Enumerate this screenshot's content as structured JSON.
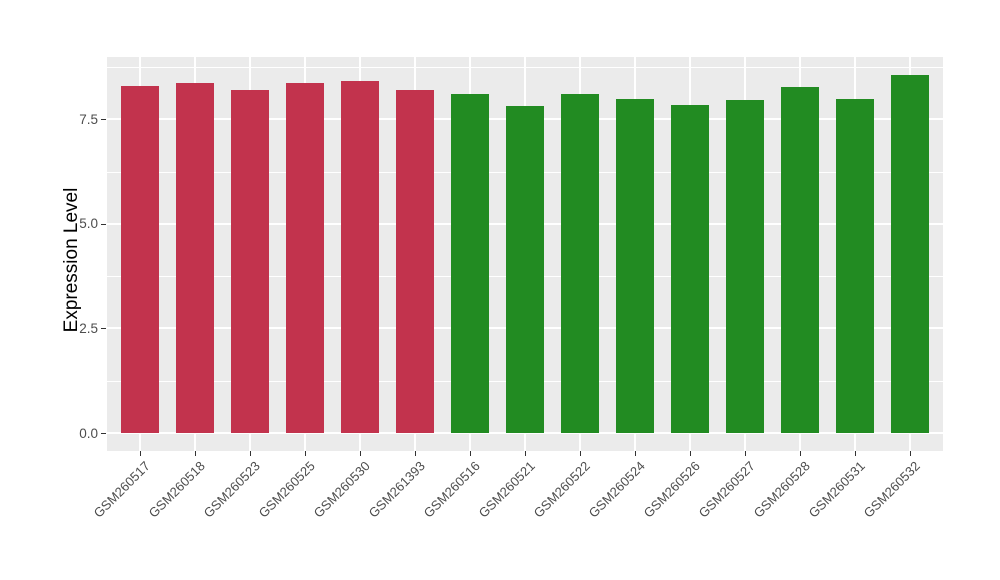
{
  "chart_data": {
    "type": "bar",
    "title": "",
    "xlabel": "",
    "ylabel": "Expression Level",
    "categories": [
      "GSM260517",
      "GSM260518",
      "GSM260523",
      "GSM260525",
      "GSM260530",
      "GSM261393",
      "GSM260516",
      "GSM260521",
      "GSM260522",
      "GSM260524",
      "GSM260526",
      "GSM260527",
      "GSM260528",
      "GSM260531",
      "GSM260532"
    ],
    "values": [
      8.3,
      8.36,
      8.21,
      8.36,
      8.41,
      8.21,
      8.1,
      7.81,
      8.11,
      7.99,
      7.85,
      7.96,
      8.28,
      7.99,
      8.56
    ],
    "bar_groups": [
      0,
      0,
      0,
      0,
      0,
      0,
      1,
      1,
      1,
      1,
      1,
      1,
      1,
      1,
      1
    ],
    "group_colors": [
      "#C2334D",
      "#228B22"
    ],
    "ytick_values": [
      0.0,
      2.5,
      5.0,
      7.5
    ],
    "ytick_labels": [
      "0.0",
      "2.5",
      "5.0",
      "7.5"
    ],
    "minor_gridlines": [
      1.25,
      3.75,
      6.25,
      8.75
    ],
    "ylim": [
      -0.43,
      8.99
    ],
    "bar_width_fraction": 0.7,
    "grid": true,
    "legend": "none",
    "panel_bg": "#EBEBEB",
    "grid_color": "#FFFFFF"
  }
}
